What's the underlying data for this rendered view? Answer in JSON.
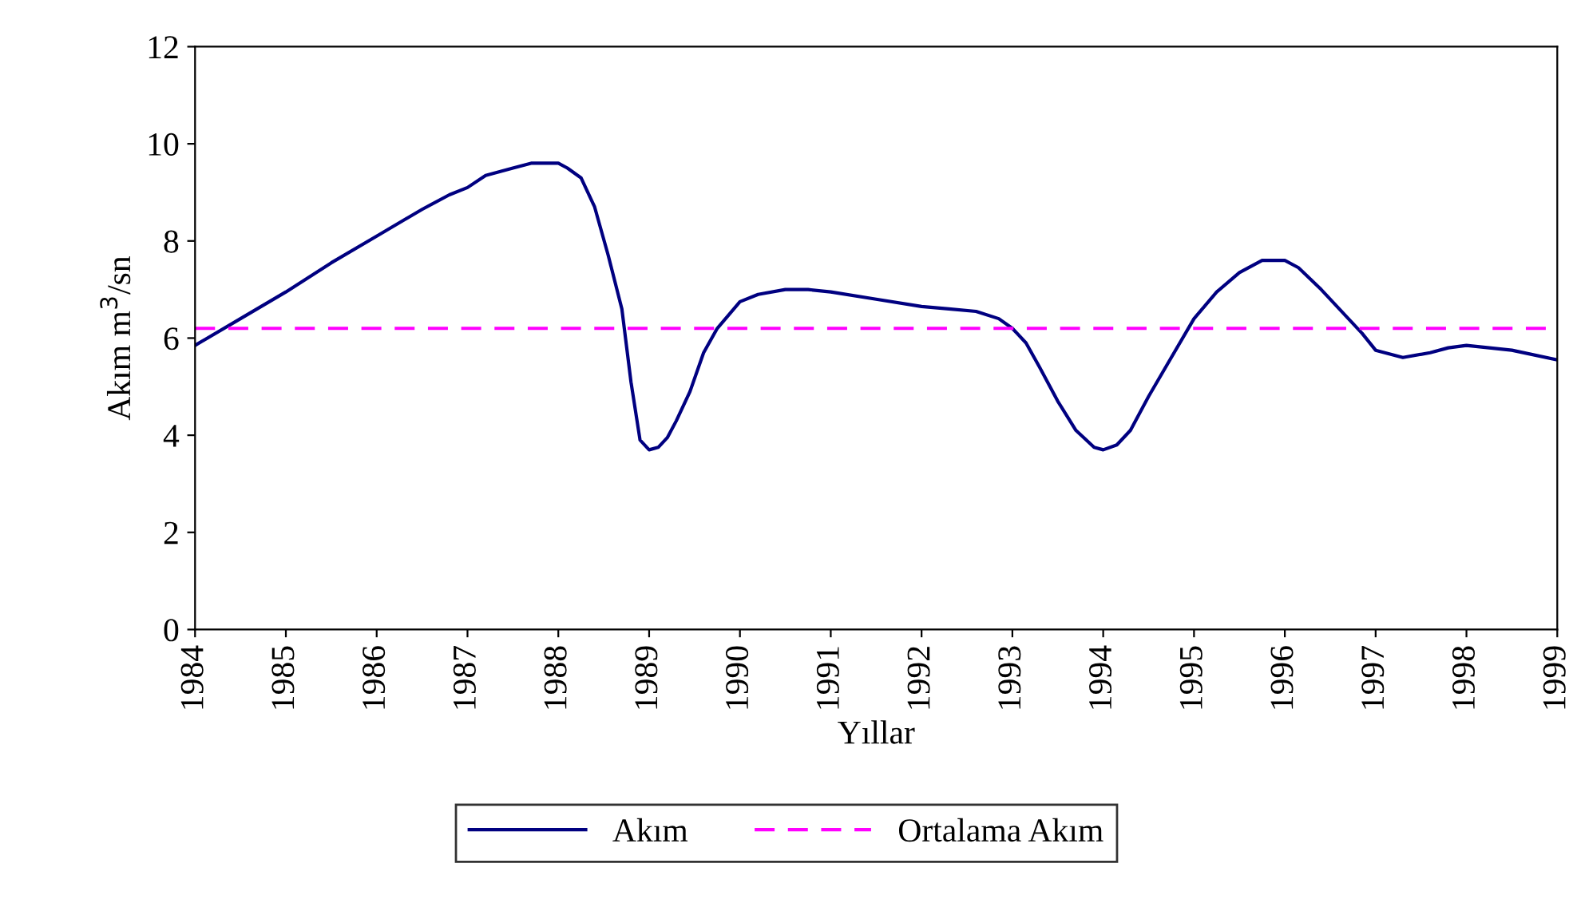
{
  "chart_data": {
    "type": "line",
    "xlabel": "Yıllar",
    "ylabel": "Akım m$^{3}$/sn",
    "x": [
      1984.0,
      1984.5,
      1985.0,
      1985.5,
      1986.0,
      1986.5,
      1986.8,
      1987.0,
      1987.2,
      1987.5,
      1987.7,
      1988.0,
      1988.1,
      1988.25,
      1988.4,
      1988.55,
      1988.7,
      1988.8,
      1988.9,
      1989.0,
      1989.1,
      1989.2,
      1989.3,
      1989.45,
      1989.6,
      1989.75,
      1990.0,
      1990.2,
      1990.5,
      1990.75,
      1991.0,
      1991.5,
      1992.0,
      1992.3,
      1992.6,
      1992.85,
      1993.0,
      1993.15,
      1993.3,
      1993.5,
      1993.7,
      1993.9,
      1994.0,
      1994.15,
      1994.3,
      1994.5,
      1994.75,
      1995.0,
      1995.25,
      1995.5,
      1995.75,
      1996.0,
      1996.15,
      1996.4,
      1996.7,
      1996.85,
      1997.0,
      1997.3,
      1997.6,
      1997.8,
      1998.0,
      1998.5,
      1999.0
    ],
    "series": [
      {
        "name": "Akım",
        "color": "#000080",
        "line_style": "solid",
        "values": [
          5.85,
          6.4,
          6.95,
          7.55,
          8.1,
          8.65,
          8.95,
          9.1,
          9.35,
          9.5,
          9.6,
          9.6,
          9.5,
          9.3,
          8.7,
          7.7,
          6.6,
          5.1,
          3.9,
          3.7,
          3.75,
          3.95,
          4.3,
          4.9,
          5.7,
          6.2,
          6.75,
          6.9,
          7.0,
          7.0,
          6.95,
          6.8,
          6.65,
          6.6,
          6.55,
          6.4,
          6.2,
          5.9,
          5.4,
          4.7,
          4.1,
          3.75,
          3.7,
          3.8,
          4.1,
          4.8,
          5.6,
          6.4,
          6.95,
          7.35,
          7.6,
          7.6,
          7.45,
          7.0,
          6.4,
          6.1,
          5.75,
          5.6,
          5.7,
          5.8,
          5.85,
          5.75,
          5.55
        ]
      },
      {
        "name": "Ortalama Akım",
        "color": "#ff00ff",
        "line_style": "dashed",
        "x": [
          1984,
          1999
        ],
        "values": [
          6.2,
          6.2
        ]
      }
    ],
    "xlim": [
      1984,
      1999
    ],
    "xticks": [
      1984,
      1985,
      1986,
      1987,
      1988,
      1989,
      1990,
      1991,
      1992,
      1993,
      1994,
      1995,
      1996,
      1997,
      1998,
      1999
    ],
    "ylim": [
      0,
      12
    ],
    "yticks": [
      0,
      2,
      4,
      6,
      8,
      10,
      12
    ],
    "grid": false,
    "legend": "bottom"
  }
}
